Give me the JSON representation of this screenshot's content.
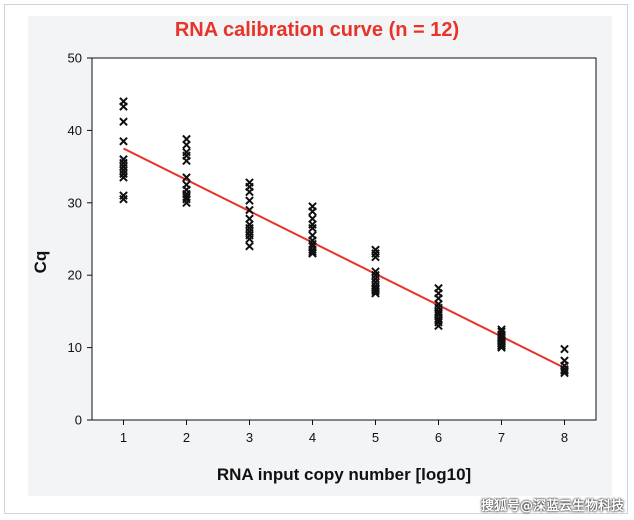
{
  "watermark": "搜狐号@深蓝云生物科技",
  "chart_data": {
    "type": "scatter",
    "title": "RNA calibration curve (n = 12)",
    "xlabel": "RNA input copy number [log10]",
    "ylabel": "Cq",
    "xlim": [
      0.5,
      8.5
    ],
    "ylim": [
      0,
      50
    ],
    "xticks": [
      "1",
      "2",
      "3",
      "4",
      "5",
      "6",
      "7",
      "8"
    ],
    "yticks": [
      "0",
      "10",
      "20",
      "30",
      "40",
      "50"
    ],
    "grid": false,
    "legend": "none",
    "colors": {
      "points": "#111111",
      "fit": "#e8332a",
      "title": "#e8332a"
    },
    "series": [
      {
        "marker": "x",
        "points": [
          [
            1,
            44.0
          ],
          [
            1,
            43.3
          ],
          [
            1,
            41.2
          ],
          [
            1,
            38.5
          ],
          [
            1,
            36.0
          ],
          [
            1,
            35.5
          ],
          [
            1,
            35.0
          ],
          [
            1,
            34.5
          ],
          [
            1,
            34.0
          ],
          [
            1,
            33.5
          ],
          [
            1,
            31.0
          ],
          [
            1,
            30.5
          ],
          [
            2,
            38.8
          ],
          [
            2,
            38.0
          ],
          [
            2,
            37.0
          ],
          [
            2,
            36.5
          ],
          [
            2,
            35.8
          ],
          [
            2,
            33.5
          ],
          [
            2,
            32.5
          ],
          [
            2,
            31.8
          ],
          [
            2,
            31.2
          ],
          [
            2,
            30.8
          ],
          [
            2,
            30.5
          ],
          [
            2,
            30.0
          ],
          [
            3,
            32.8
          ],
          [
            3,
            32.2
          ],
          [
            3,
            31.5
          ],
          [
            3,
            30.3
          ],
          [
            3,
            29.0
          ],
          [
            3,
            27.8
          ],
          [
            3,
            27.0
          ],
          [
            3,
            26.5
          ],
          [
            3,
            26.0
          ],
          [
            3,
            25.5
          ],
          [
            3,
            25.0
          ],
          [
            3,
            24.0
          ],
          [
            4,
            29.5
          ],
          [
            4,
            28.8
          ],
          [
            4,
            27.8
          ],
          [
            4,
            27.0
          ],
          [
            4,
            26.5
          ],
          [
            4,
            25.5
          ],
          [
            4,
            24.8
          ],
          [
            4,
            24.3
          ],
          [
            4,
            24.0
          ],
          [
            4,
            23.5
          ],
          [
            4,
            23.2
          ],
          [
            4,
            23.0
          ],
          [
            5,
            23.5
          ],
          [
            5,
            23.0
          ],
          [
            5,
            22.5
          ],
          [
            5,
            20.5
          ],
          [
            5,
            20.0
          ],
          [
            5,
            19.5
          ],
          [
            5,
            19.0
          ],
          [
            5,
            18.5
          ],
          [
            5,
            18.2
          ],
          [
            5,
            18.0
          ],
          [
            5,
            17.8
          ],
          [
            5,
            17.5
          ],
          [
            6,
            18.2
          ],
          [
            6,
            17.5
          ],
          [
            6,
            16.8
          ],
          [
            6,
            16.0
          ],
          [
            6,
            15.5
          ],
          [
            6,
            15.0
          ],
          [
            6,
            14.8
          ],
          [
            6,
            14.5
          ],
          [
            6,
            14.0
          ],
          [
            6,
            13.8
          ],
          [
            6,
            13.5
          ],
          [
            6,
            13.0
          ],
          [
            7,
            12.5
          ],
          [
            7,
            12.2
          ],
          [
            7,
            11.8
          ],
          [
            7,
            11.5
          ],
          [
            7,
            11.2
          ],
          [
            7,
            11.0
          ],
          [
            7,
            10.8
          ],
          [
            7,
            10.6
          ],
          [
            7,
            10.5
          ],
          [
            7,
            10.3
          ],
          [
            7,
            10.2
          ],
          [
            7,
            10.0
          ],
          [
            8,
            9.8
          ],
          [
            8,
            8.2
          ],
          [
            8,
            7.5
          ],
          [
            8,
            7.0
          ],
          [
            8,
            6.8
          ],
          [
            8,
            6.5
          ]
        ]
      }
    ],
    "fit_line": {
      "x": [
        1,
        8
      ],
      "y": [
        37.5,
        7.2
      ]
    }
  }
}
